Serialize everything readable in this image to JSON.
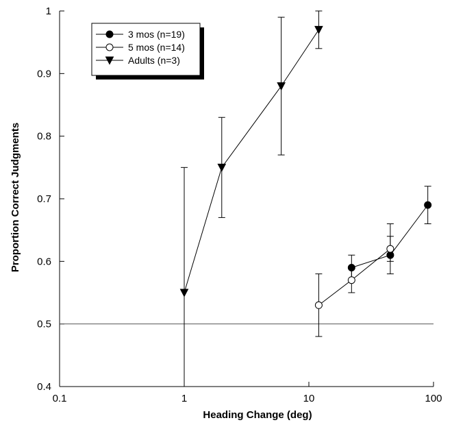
{
  "chart_data": {
    "type": "scatter",
    "xlabel": "Heading Change (deg)",
    "ylabel": "Proportion Correct Judgments",
    "xscale": "log",
    "xlim": [
      0.1,
      100
    ],
    "ylim": [
      0.4,
      1.0
    ],
    "xticks": [
      0.1,
      1,
      10,
      100
    ],
    "xtick_labels": [
      "0.1",
      "1",
      "10",
      "100"
    ],
    "yticks": [
      0.4,
      0.5,
      0.6,
      0.7,
      0.8,
      0.9,
      1.0
    ],
    "ytick_labels": [
      "0.4",
      "0.5",
      "0.6",
      "0.7",
      "0.8",
      "0.9",
      "1"
    ],
    "reference_line": 0.5,
    "legend_placement": "top-left",
    "series": [
      {
        "name": "3 mos (n=19)",
        "marker": "filled-circle",
        "x": [
          22,
          45,
          90
        ],
        "y": [
          0.59,
          0.61,
          0.69
        ],
        "err_low": [
          0.57,
          0.58,
          0.66
        ],
        "err_high": [
          0.61,
          0.64,
          0.72
        ]
      },
      {
        "name": "5 mos (n=14)",
        "marker": "open-circle",
        "x": [
          12,
          22,
          45
        ],
        "y": [
          0.53,
          0.57,
          0.62
        ],
        "err_low": [
          0.48,
          0.55,
          0.6
        ],
        "err_high": [
          0.58,
          0.59,
          0.66
        ]
      },
      {
        "name": "Adults (n=3)",
        "marker": "filled-triangle-down",
        "x": [
          1,
          2,
          6,
          12
        ],
        "y": [
          0.55,
          0.75,
          0.88,
          0.97
        ],
        "err_low": [
          0.4,
          0.67,
          0.77,
          0.94
        ],
        "err_high": [
          0.75,
          0.83,
          0.99,
          1.0
        ]
      }
    ]
  },
  "colors": {
    "ink": "#000000",
    "reference_line": "#555555",
    "legend_shadow": "#000000"
  }
}
